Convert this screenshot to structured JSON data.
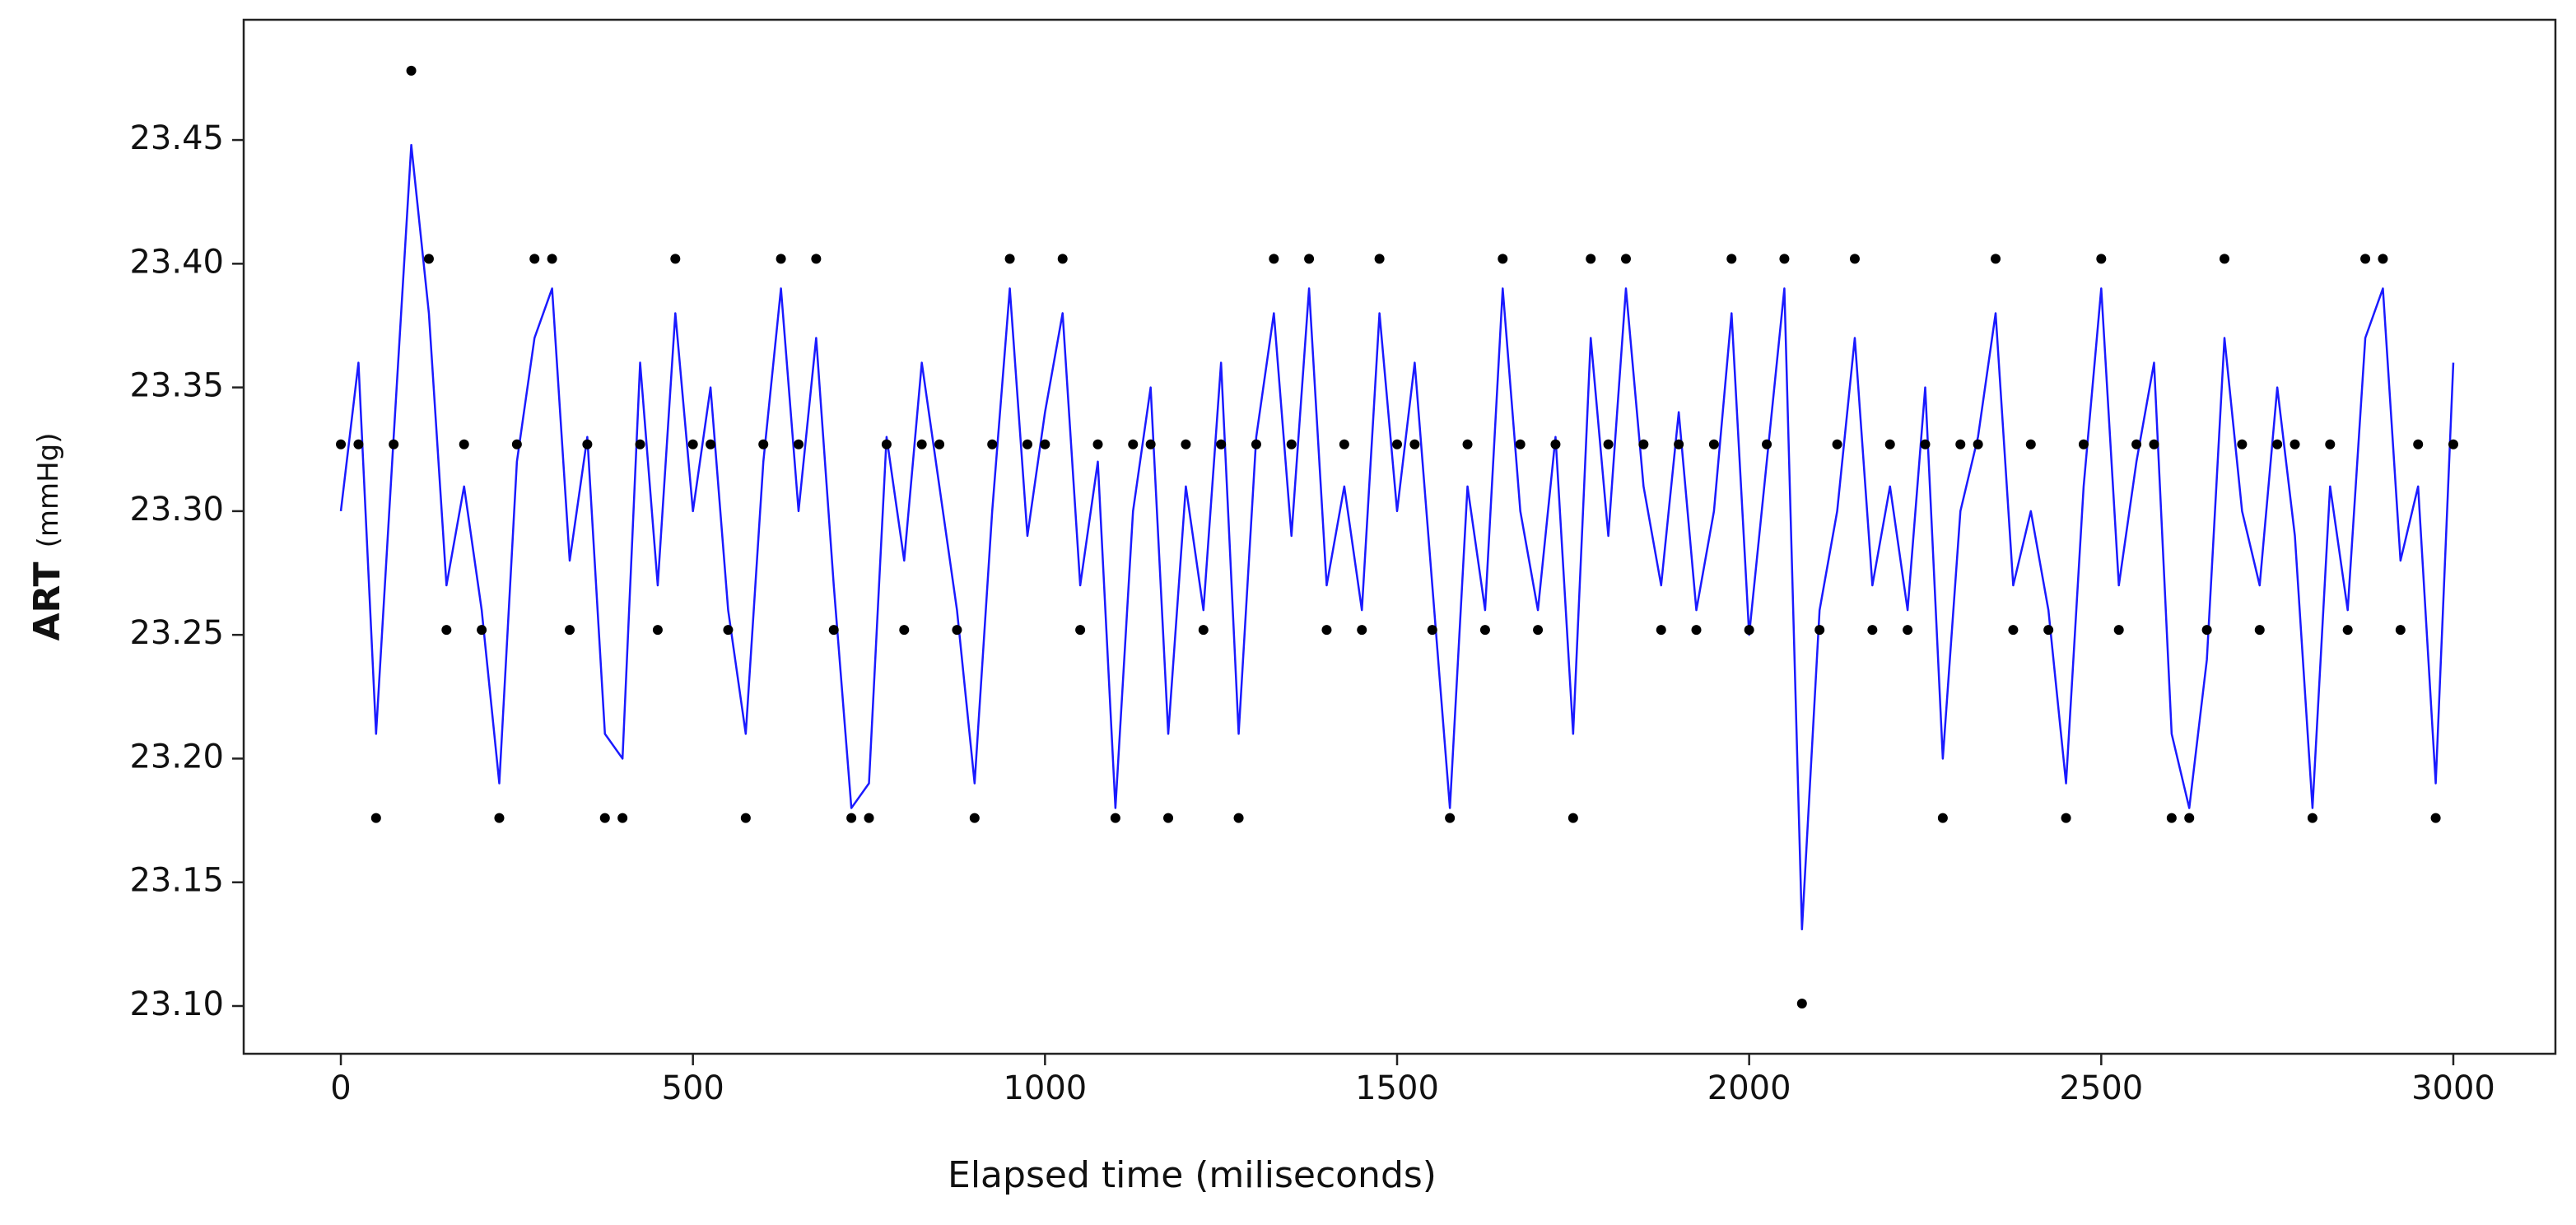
{
  "chart_data": {
    "type": "line",
    "xlabel": "Elapsed time (miliseconds)",
    "ylabel": "ART",
    "ylabel_unit": "(mmHg)",
    "xlim": [
      -138,
      3145
    ],
    "ylim": [
      23.0807,
      23.4986
    ],
    "xticks": [
      0,
      500,
      1000,
      1500,
      2000,
      2500,
      3000
    ],
    "yticks": [
      {
        "value": 23.1,
        "label": "23.10"
      },
      {
        "value": 23.15,
        "label": "23.15"
      },
      {
        "value": 23.2,
        "label": "23.20"
      },
      {
        "value": 23.25,
        "label": "23.25"
      },
      {
        "value": 23.3,
        "label": "23.30"
      },
      {
        "value": 23.35,
        "label": "23.35"
      },
      {
        "value": 23.4,
        "label": "23.40"
      },
      {
        "value": 23.45,
        "label": "23.45"
      }
    ],
    "grid": false,
    "x": [
      0,
      25,
      50,
      75,
      100,
      125,
      150,
      175,
      200,
      225,
      250,
      275,
      300,
      325,
      350,
      375,
      400,
      425,
      450,
      475,
      500,
      525,
      550,
      575,
      600,
      625,
      650,
      675,
      700,
      725,
      750,
      775,
      800,
      825,
      850,
      875,
      900,
      925,
      950,
      975,
      1000,
      1025,
      1050,
      1075,
      1100,
      1125,
      1150,
      1175,
      1200,
      1225,
      1250,
      1275,
      1300,
      1325,
      1350,
      1375,
      1400,
      1425,
      1450,
      1475,
      1500,
      1525,
      1550,
      1575,
      1600,
      1625,
      1650,
      1675,
      1700,
      1725,
      1750,
      1775,
      1800,
      1825,
      1850,
      1875,
      1900,
      1925,
      1950,
      1975,
      2000,
      2025,
      2050,
      2075,
      2100,
      2125,
      2150,
      2175,
      2200,
      2225,
      2250,
      2275,
      2300,
      2325,
      2350,
      2375,
      2400,
      2425,
      2450,
      2475,
      2500,
      2525,
      2550,
      2575,
      2600,
      2625,
      2650,
      2675,
      2700,
      2725,
      2750,
      2775,
      2800,
      2825,
      2850,
      2875,
      2900,
      2925,
      2950,
      2975,
      3000
    ],
    "series": [
      {
        "mode": "line",
        "color": "#1a1aff",
        "values": [
          23.3,
          23.36,
          23.21,
          23.33,
          23.448,
          23.38,
          23.27,
          23.31,
          23.26,
          23.19,
          23.32,
          23.37,
          23.39,
          23.28,
          23.33,
          23.21,
          23.2,
          23.36,
          23.27,
          23.38,
          23.3,
          23.35,
          23.26,
          23.21,
          23.32,
          23.39,
          23.3,
          23.37,
          23.27,
          23.18,
          23.19,
          23.33,
          23.28,
          23.36,
          23.31,
          23.26,
          23.19,
          23.3,
          23.39,
          23.29,
          23.34,
          23.38,
          23.27,
          23.32,
          23.18,
          23.3,
          23.35,
          23.21,
          23.31,
          23.26,
          23.36,
          23.21,
          23.33,
          23.38,
          23.29,
          23.39,
          23.27,
          23.31,
          23.26,
          23.38,
          23.3,
          23.36,
          23.27,
          23.18,
          23.31,
          23.26,
          23.39,
          23.3,
          23.26,
          23.33,
          23.21,
          23.37,
          23.29,
          23.39,
          23.31,
          23.27,
          23.34,
          23.26,
          23.3,
          23.38,
          23.25,
          23.32,
          23.39,
          23.131,
          23.26,
          23.3,
          23.37,
          23.27,
          23.31,
          23.26,
          23.35,
          23.2,
          23.3,
          23.33,
          23.38,
          23.27,
          23.3,
          23.26,
          23.19,
          23.31,
          23.39,
          23.27,
          23.32,
          23.36,
          23.21,
          23.18,
          23.24,
          23.37,
          23.3,
          23.27,
          23.35,
          23.29,
          23.18,
          23.31,
          23.26,
          23.37,
          23.39,
          23.28,
          23.31,
          23.19,
          23.36
        ]
      },
      {
        "mode": "markers",
        "color": "#000000",
        "values": [
          23.327,
          23.327,
          23.176,
          23.327,
          23.478,
          23.402,
          23.252,
          23.327,
          23.252,
          23.176,
          23.327,
          23.402,
          23.402,
          23.252,
          23.327,
          23.176,
          23.176,
          23.327,
          23.252,
          23.402,
          23.327,
          23.327,
          23.252,
          23.176,
          23.327,
          23.402,
          23.327,
          23.402,
          23.252,
          23.176,
          23.176,
          23.327,
          23.252,
          23.327,
          23.327,
          23.252,
          23.176,
          23.327,
          23.402,
          23.327,
          23.327,
          23.402,
          23.252,
          23.327,
          23.176,
          23.327,
          23.327,
          23.176,
          23.327,
          23.252,
          23.327,
          23.176,
          23.327,
          23.402,
          23.327,
          23.402,
          23.252,
          23.327,
          23.252,
          23.402,
          23.327,
          23.327,
          23.252,
          23.176,
          23.327,
          23.252,
          23.402,
          23.327,
          23.252,
          23.327,
          23.176,
          23.402,
          23.327,
          23.402,
          23.327,
          23.252,
          23.327,
          23.252,
          23.327,
          23.402,
          23.252,
          23.327,
          23.402,
          23.101,
          23.252,
          23.327,
          23.402,
          23.252,
          23.327,
          23.252,
          23.327,
          23.176,
          23.327,
          23.327,
          23.402,
          23.252,
          23.327,
          23.252,
          23.176,
          23.327,
          23.402,
          23.252,
          23.327,
          23.327,
          23.176,
          23.176,
          23.252,
          23.402,
          23.327,
          23.252,
          23.327,
          23.327,
          23.176,
          23.327,
          23.252,
          23.402,
          23.402,
          23.252,
          23.327,
          23.176,
          23.327
        ]
      }
    ]
  }
}
